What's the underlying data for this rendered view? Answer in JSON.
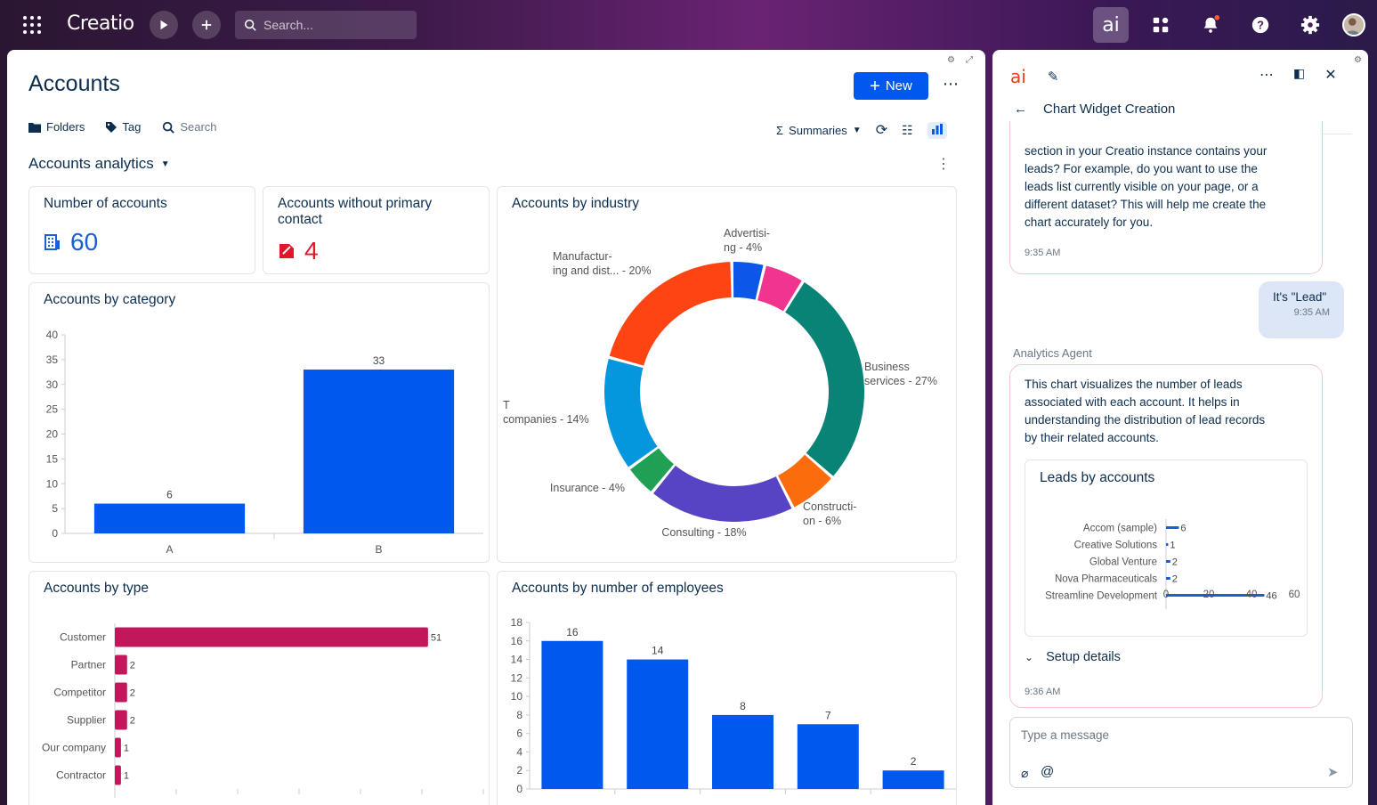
{
  "topbar": {
    "logo": "Creatio",
    "search_placeholder": "Search...",
    "ai_label": "ai"
  },
  "page": {
    "title": "Accounts",
    "new_button": "New",
    "toolbar": {
      "folders": "Folders",
      "tag": "Tag",
      "search": "Search",
      "summaries": "Summaries"
    },
    "section_title": "Accounts analytics"
  },
  "widgets": {
    "number_of_accounts": {
      "title": "Number of accounts",
      "value": "60"
    },
    "without_contact": {
      "title": "Accounts without primary contact",
      "value": "4"
    }
  },
  "chart_data": [
    {
      "id": "by_category",
      "type": "bar",
      "title": "Accounts by category",
      "categories": [
        "A",
        "B"
      ],
      "values": [
        6,
        33
      ],
      "ylim": [
        0,
        40
      ],
      "yticks": [
        0,
        5,
        10,
        15,
        20,
        25,
        30,
        35,
        40
      ],
      "color": "#0058ef"
    },
    {
      "id": "by_industry",
      "type": "pie",
      "title": "Accounts by industry",
      "labels": [
        "Advertisi-ng - 4%",
        "",
        "Business services - 27%",
        "Constructi-on - 6%",
        "Consulting - 18%",
        "Insurance - 4%",
        "T companies - 14%",
        "Manufactur-ing and dist... - 20%"
      ],
      "values": [
        4,
        5,
        27,
        6,
        18,
        4,
        14,
        20
      ],
      "colors": [
        "#0d57e8",
        "#f1358e",
        "#088376",
        "#fa6c0c",
        "#5744c5",
        "#20a055",
        "#0497dd",
        "#fe4412"
      ]
    },
    {
      "id": "by_type",
      "type": "bar",
      "orientation": "horizontal",
      "title": "Accounts by type",
      "categories": [
        "Customer",
        "Partner",
        "Competitor",
        "Supplier",
        "Our company",
        "Contractor"
      ],
      "values": [
        51,
        2,
        2,
        2,
        1,
        1
      ],
      "color": "#c2185b"
    },
    {
      "id": "by_employees",
      "type": "bar",
      "title": "Accounts by number of employees",
      "categories": [
        "",
        "",
        "",
        "",
        ""
      ],
      "values": [
        16,
        14,
        8,
        7,
        2
      ],
      "ylim": [
        0,
        18
      ],
      "yticks": [
        0,
        2,
        4,
        6,
        8,
        10,
        12,
        14,
        16,
        18
      ],
      "color": "#0058ef"
    },
    {
      "id": "leads_by_accounts",
      "type": "bar",
      "orientation": "horizontal",
      "title": "Leads by accounts",
      "categories": [
        "Accom (sample)",
        "Creative Solutions",
        "Global Venture",
        "Nova Pharmaceuticals",
        "Streamline Development"
      ],
      "values": [
        6,
        1,
        2,
        2,
        46
      ],
      "xticks": [
        0,
        20,
        40,
        60
      ],
      "color": "#1a5fd6"
    }
  ],
  "assistant": {
    "header_title": "Chart Widget Creation",
    "msg1_lines": [
      "section in your Creatio instance contains your",
      "leads? For example, do you want to use the",
      "leads list currently visible on your page, or a",
      "different dataset? This will help me create the",
      "chart accurately for you."
    ],
    "msg1_time": "9:35 AM",
    "user_msg": "It's \"Lead\"",
    "user_time": "9:35 AM",
    "agent_name": "Analytics Agent",
    "msg2_lines": [
      "This chart visualizes the number of leads",
      "associated with each account. It helps in",
      "understanding the distribution of lead records",
      "by their related accounts."
    ],
    "setup_details": "Setup details",
    "msg2_time": "9:36 AM",
    "composer_placeholder": "Type a message"
  }
}
